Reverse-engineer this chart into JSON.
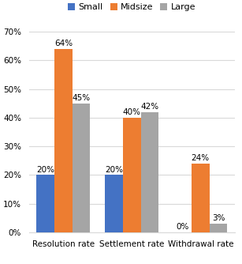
{
  "categories": [
    "Resolution rate",
    "Settlement rate",
    "Withdrawal rate"
  ],
  "series": [
    {
      "label": "Small",
      "color": "#4472c4",
      "values": [
        20,
        20,
        0
      ]
    },
    {
      "label": "Midsize",
      "color": "#ed7d31",
      "values": [
        64,
        40,
        24
      ]
    },
    {
      "label": "Large",
      "color": "#a5a5a5",
      "values": [
        45,
        42,
        3
      ]
    }
  ],
  "ylim": [
    0,
    70
  ],
  "yticks": [
    0,
    10,
    20,
    30,
    40,
    50,
    60,
    70
  ],
  "bar_width": 0.26,
  "label_fontsize": 7.5,
  "tick_fontsize": 7.5,
  "legend_fontsize": 8,
  "background_color": "#ffffff"
}
